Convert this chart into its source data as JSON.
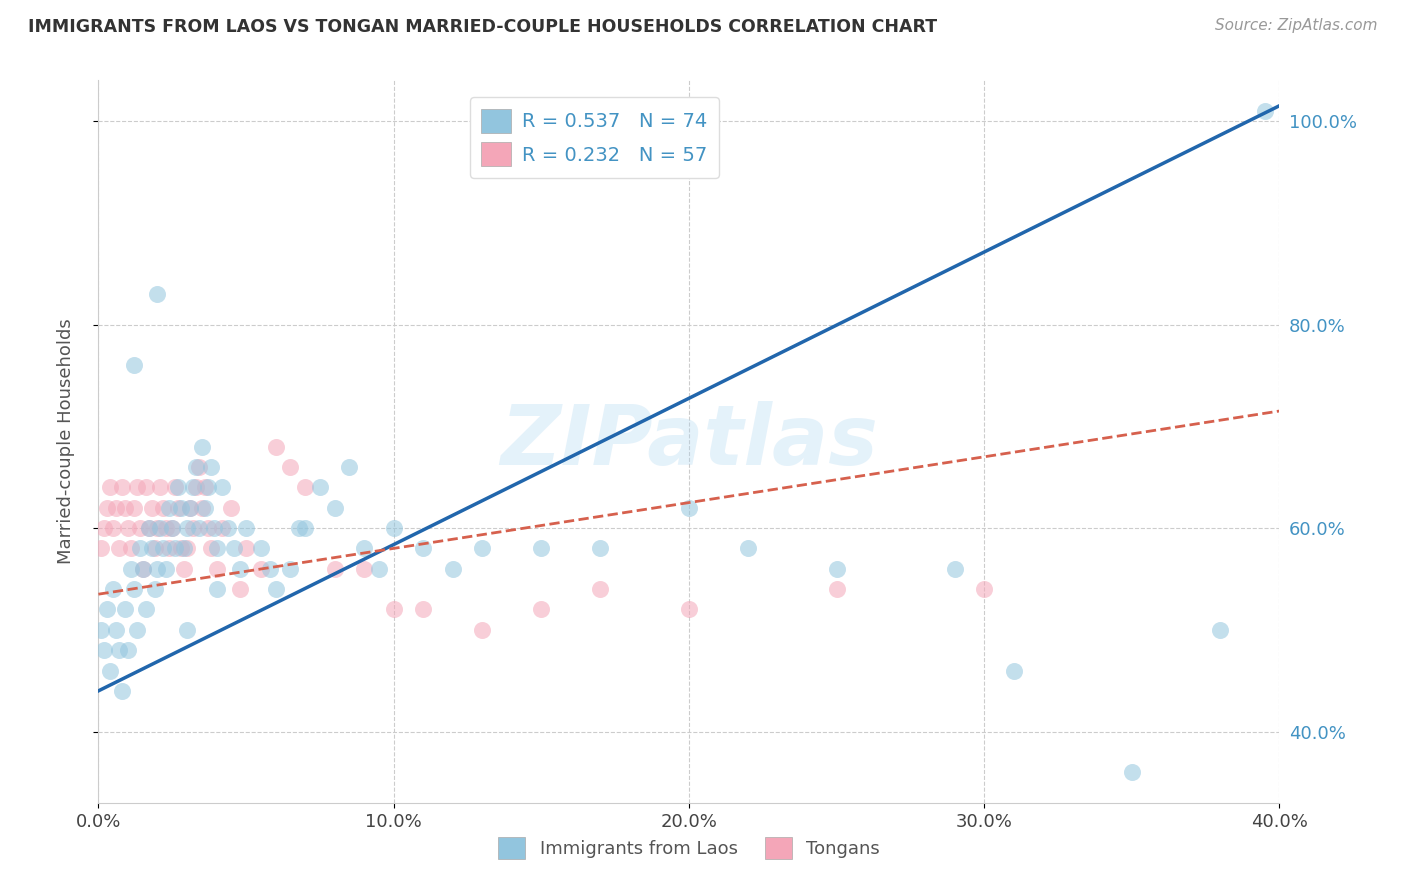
{
  "title": "IMMIGRANTS FROM LAOS VS TONGAN MARRIED-COUPLE HOUSEHOLDS CORRELATION CHART",
  "source": "Source: ZipAtlas.com",
  "ylabel": "Married-couple Households",
  "legend_label_blue": "Immigrants from Laos",
  "legend_label_pink": "Tongans",
  "R_blue": 0.537,
  "N_blue": 74,
  "R_pink": 0.232,
  "N_pink": 57,
  "color_blue": "#92c5de",
  "color_pink": "#f4a6b8",
  "color_blue_line": "#2166ac",
  "color_pink_line": "#d6604d",
  "color_text_blue": "#4393c3",
  "color_axis_label": "#555555",
  "xlim": [
    0.0,
    0.4
  ],
  "ylim": [
    0.33,
    1.04
  ],
  "xticks": [
    0.0,
    0.1,
    0.2,
    0.3,
    0.4
  ],
  "yticks": [
    0.4,
    0.6,
    0.8,
    1.0
  ],
  "blue_points_x": [
    0.001,
    0.002,
    0.003,
    0.004,
    0.005,
    0.006,
    0.007,
    0.008,
    0.009,
    0.01,
    0.011,
    0.012,
    0.013,
    0.014,
    0.015,
    0.016,
    0.017,
    0.018,
    0.019,
    0.02,
    0.021,
    0.022,
    0.023,
    0.024,
    0.025,
    0.026,
    0.027,
    0.028,
    0.029,
    0.03,
    0.031,
    0.032,
    0.033,
    0.034,
    0.035,
    0.036,
    0.037,
    0.038,
    0.039,
    0.04,
    0.042,
    0.044,
    0.046,
    0.048,
    0.05,
    0.055,
    0.058,
    0.06,
    0.065,
    0.068,
    0.07,
    0.075,
    0.08,
    0.085,
    0.09,
    0.095,
    0.1,
    0.11,
    0.12,
    0.13,
    0.15,
    0.17,
    0.2,
    0.22,
    0.25,
    0.29,
    0.31,
    0.35,
    0.38,
    0.395,
    0.012,
    0.02,
    0.03,
    0.04
  ],
  "blue_points_y": [
    0.5,
    0.48,
    0.52,
    0.46,
    0.54,
    0.5,
    0.48,
    0.44,
    0.52,
    0.48,
    0.56,
    0.54,
    0.5,
    0.58,
    0.56,
    0.52,
    0.6,
    0.58,
    0.54,
    0.56,
    0.6,
    0.58,
    0.56,
    0.62,
    0.6,
    0.58,
    0.64,
    0.62,
    0.58,
    0.6,
    0.62,
    0.64,
    0.66,
    0.6,
    0.68,
    0.62,
    0.64,
    0.66,
    0.6,
    0.58,
    0.64,
    0.6,
    0.58,
    0.56,
    0.6,
    0.58,
    0.56,
    0.54,
    0.56,
    0.6,
    0.6,
    0.64,
    0.62,
    0.66,
    0.58,
    0.56,
    0.6,
    0.58,
    0.56,
    0.58,
    0.58,
    0.58,
    0.62,
    0.58,
    0.56,
    0.56,
    0.46,
    0.36,
    0.5,
    1.01,
    0.76,
    0.83,
    0.5,
    0.54
  ],
  "pink_points_x": [
    0.001,
    0.002,
    0.003,
    0.004,
    0.005,
    0.006,
    0.007,
    0.008,
    0.009,
    0.01,
    0.011,
    0.012,
    0.013,
    0.014,
    0.015,
    0.016,
    0.017,
    0.018,
    0.019,
    0.02,
    0.021,
    0.022,
    0.023,
    0.024,
    0.025,
    0.026,
    0.027,
    0.028,
    0.029,
    0.03,
    0.031,
    0.032,
    0.033,
    0.034,
    0.035,
    0.036,
    0.037,
    0.038,
    0.04,
    0.042,
    0.045,
    0.048,
    0.05,
    0.055,
    0.06,
    0.065,
    0.07,
    0.08,
    0.09,
    0.1,
    0.11,
    0.13,
    0.15,
    0.17,
    0.2,
    0.25,
    0.3
  ],
  "pink_points_y": [
    0.58,
    0.6,
    0.62,
    0.64,
    0.6,
    0.62,
    0.58,
    0.64,
    0.62,
    0.6,
    0.58,
    0.62,
    0.64,
    0.6,
    0.56,
    0.64,
    0.6,
    0.62,
    0.58,
    0.6,
    0.64,
    0.62,
    0.6,
    0.58,
    0.6,
    0.64,
    0.62,
    0.58,
    0.56,
    0.58,
    0.62,
    0.6,
    0.64,
    0.66,
    0.62,
    0.64,
    0.6,
    0.58,
    0.56,
    0.6,
    0.62,
    0.54,
    0.58,
    0.56,
    0.68,
    0.66,
    0.64,
    0.56,
    0.56,
    0.52,
    0.52,
    0.5,
    0.52,
    0.54,
    0.52,
    0.54,
    0.54
  ],
  "watermark": "ZIPatlas",
  "blue_line_x0": 0.0,
  "blue_line_y0": 0.44,
  "blue_line_x1": 0.4,
  "blue_line_y1": 1.015,
  "pink_line_x0": 0.0,
  "pink_line_y0": 0.535,
  "pink_line_x1": 0.4,
  "pink_line_y1": 0.715
}
